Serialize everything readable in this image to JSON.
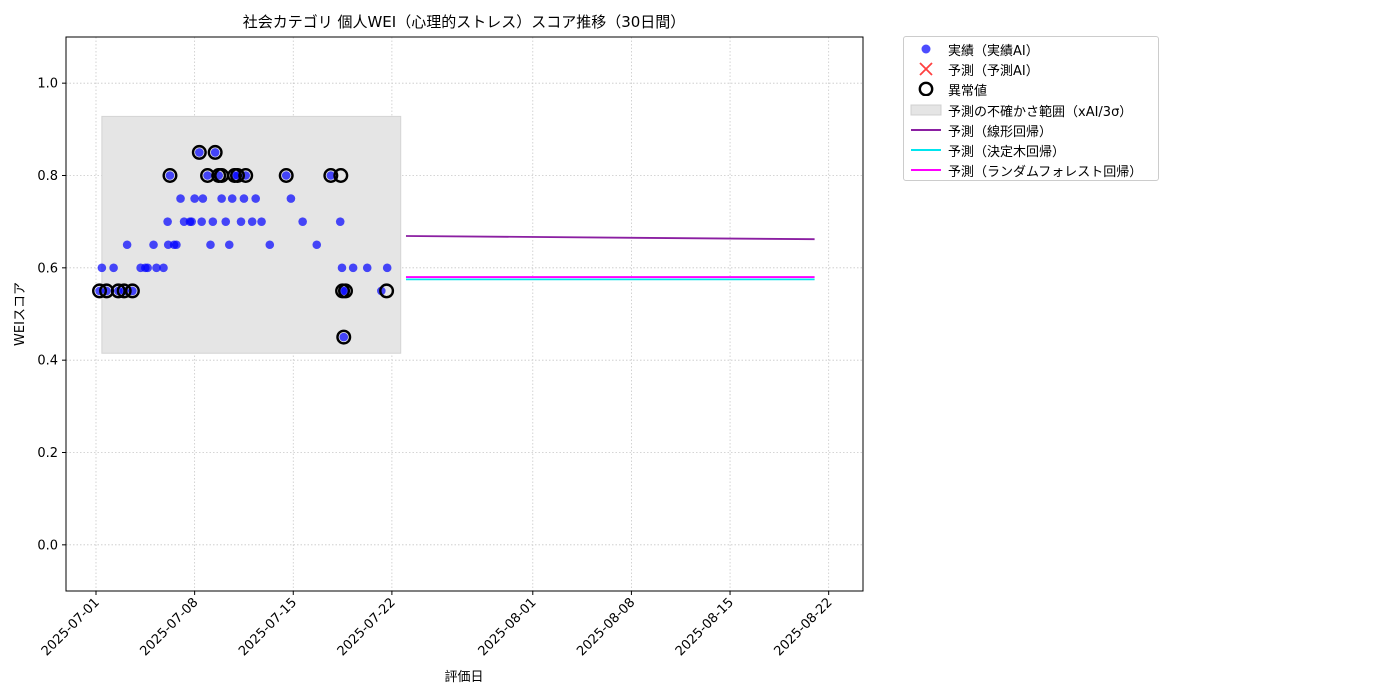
{
  "chart_data": {
    "type": "scatter",
    "title": "社会カテゴリ 個人WEI（心理的ストレス）スコア推移（30日間）",
    "xlabel": "評価日",
    "ylabel": "WEIスコア",
    "xlim": [
      "2024-06-29T00:00",
      "2025-08-24T00:00"
    ],
    "ylim": [
      -0.1,
      1.1
    ],
    "yticks": [
      0.0,
      0.2,
      0.4,
      0.6,
      0.8,
      1.0
    ],
    "ytick_labels": [
      "0.0",
      "0.2",
      "0.4",
      "0.6",
      "0.8",
      "1.0"
    ],
    "xticks": [
      "2025-07-01",
      "2025-07-08",
      "2025-07-15",
      "2025-07-22",
      "2025-08-01",
      "2025-08-08",
      "2025-08-15",
      "2025-08-22"
    ],
    "grid": true,
    "legend_position": "outside-top-right",
    "uncertainty_band": {
      "x_start": "2025-07-01T10:00",
      "x_end": "2025-07-22T15:00",
      "y_low": 0.415,
      "y_high": 0.928
    },
    "series": [
      {
        "name": "実績（実績AI）",
        "kind": "scatter",
        "color": "#0000ff",
        "points": [
          [
            "2025-07-01T06:00",
            0.55
          ],
          [
            "2025-07-01T10:00",
            0.6
          ],
          [
            "2025-07-01T18:00",
            0.55
          ],
          [
            "2025-07-02T06:00",
            0.6
          ],
          [
            "2025-07-02T14:00",
            0.55
          ],
          [
            "2025-07-03T00:00",
            0.55
          ],
          [
            "2025-07-03T05:00",
            0.65
          ],
          [
            "2025-07-03T14:00",
            0.55
          ],
          [
            "2025-07-04T04:00",
            0.6
          ],
          [
            "2025-07-04T12:00",
            0.6
          ],
          [
            "2025-07-04T16:00",
            0.6
          ],
          [
            "2025-07-05T02:00",
            0.65
          ],
          [
            "2025-07-05T07:00",
            0.6
          ],
          [
            "2025-07-05T19:00",
            0.6
          ],
          [
            "2025-07-06T02:00",
            0.7
          ],
          [
            "2025-07-06T03:00",
            0.65
          ],
          [
            "2025-07-06T06:00",
            0.8
          ],
          [
            "2025-07-06T13:00",
            0.65
          ],
          [
            "2025-07-06T17:00",
            0.65
          ],
          [
            "2025-07-07T00:00",
            0.75
          ],
          [
            "2025-07-07T06:00",
            0.7
          ],
          [
            "2025-07-07T16:00",
            0.7
          ],
          [
            "2025-07-07T19:00",
            0.7
          ],
          [
            "2025-07-08T00:00",
            0.75
          ],
          [
            "2025-07-08T08:00",
            0.85
          ],
          [
            "2025-07-08T12:00",
            0.7
          ],
          [
            "2025-07-08T14:00",
            0.75
          ],
          [
            "2025-07-08T22:00",
            0.8
          ],
          [
            "2025-07-09T03:00",
            0.65
          ],
          [
            "2025-07-09T07:00",
            0.7
          ],
          [
            "2025-07-09T11:00",
            0.85
          ],
          [
            "2025-07-09T17:00",
            0.8
          ],
          [
            "2025-07-09T22:00",
            0.75
          ],
          [
            "2025-07-10T05:00",
            0.7
          ],
          [
            "2025-07-10T11:00",
            0.65
          ],
          [
            "2025-07-10T16:00",
            0.75
          ],
          [
            "2025-07-10T20:00",
            0.8
          ],
          [
            "2025-07-11T01:00",
            0.8
          ],
          [
            "2025-07-11T07:00",
            0.7
          ],
          [
            "2025-07-11T12:00",
            0.75
          ],
          [
            "2025-07-11T15:00",
            0.8
          ],
          [
            "2025-07-12T02:00",
            0.7
          ],
          [
            "2025-07-12T08:00",
            0.75
          ],
          [
            "2025-07-12T18:00",
            0.7
          ],
          [
            "2025-07-13T08:00",
            0.65
          ],
          [
            "2025-07-14T12:00",
            0.8
          ],
          [
            "2025-07-14T20:00",
            0.75
          ],
          [
            "2025-07-15T16:00",
            0.7
          ],
          [
            "2025-07-16T16:00",
            0.65
          ],
          [
            "2025-07-17T16:00",
            0.8
          ],
          [
            "2025-07-18T08:00",
            0.7
          ],
          [
            "2025-07-18T11:00",
            0.6
          ],
          [
            "2025-07-18T12:00",
            0.55
          ],
          [
            "2025-07-18T14:00",
            0.45
          ],
          [
            "2025-07-18T17:00",
            0.55
          ],
          [
            "2025-07-19T06:00",
            0.6
          ],
          [
            "2025-07-20T06:00",
            0.6
          ],
          [
            "2025-07-21T06:00",
            0.55
          ],
          [
            "2025-07-21T16:00",
            0.6
          ]
        ]
      },
      {
        "name": "異常値",
        "kind": "outlier",
        "color": "#000000",
        "points": [
          [
            "2025-07-01T06:00",
            0.55
          ],
          [
            "2025-07-01T18:00",
            0.55
          ],
          [
            "2025-07-02T14:00",
            0.55
          ],
          [
            "2025-07-03T00:00",
            0.55
          ],
          [
            "2025-07-03T14:00",
            0.55
          ],
          [
            "2025-07-06T06:00",
            0.8
          ],
          [
            "2025-07-08T08:00",
            0.85
          ],
          [
            "2025-07-08T22:00",
            0.8
          ],
          [
            "2025-07-09T11:00",
            0.85
          ],
          [
            "2025-07-09T17:00",
            0.8
          ],
          [
            "2025-07-09T22:00",
            0.8
          ],
          [
            "2025-07-10T20:00",
            0.8
          ],
          [
            "2025-07-11T01:00",
            0.8
          ],
          [
            "2025-07-11T15:00",
            0.8
          ],
          [
            "2025-07-14T12:00",
            0.8
          ],
          [
            "2025-07-17T16:00",
            0.8
          ],
          [
            "2025-07-18T09:00",
            0.8
          ],
          [
            "2025-07-18T12:00",
            0.55
          ],
          [
            "2025-07-18T14:00",
            0.45
          ],
          [
            "2025-07-18T17:00",
            0.55
          ],
          [
            "2025-07-21T15:00",
            0.55
          ]
        ]
      },
      {
        "name": "予測（予測AI）",
        "kind": "cross",
        "color": "#ff0000",
        "points": []
      },
      {
        "name": "予測（線形回帰）",
        "kind": "line",
        "color": "#8b1fa2",
        "points": [
          [
            "2025-07-23T00:00",
            0.669
          ],
          [
            "2025-08-21T00:00",
            0.662
          ]
        ]
      },
      {
        "name": "予測（決定木回帰）",
        "kind": "line",
        "color": "#00e5ee",
        "points": [
          [
            "2025-07-23T00:00",
            0.575
          ],
          [
            "2025-08-21T00:00",
            0.575
          ]
        ]
      },
      {
        "name": "予測（ランダムフォレスト回帰）",
        "kind": "line",
        "color": "#ff00ff",
        "points": [
          [
            "2025-07-23T00:00",
            0.58
          ],
          [
            "2025-08-21T00:00",
            0.58
          ]
        ]
      }
    ]
  },
  "legend": {
    "items": [
      {
        "label": "実績（実績AI）",
        "kind": "scatter",
        "color": "#0000ff",
        "icon": "blue-dot"
      },
      {
        "label": "予測（予測AI）",
        "kind": "cross",
        "color": "#ff0000",
        "icon": "red-cross"
      },
      {
        "label": "異常値",
        "kind": "outlier",
        "color": "#000000",
        "icon": "black-ring"
      },
      {
        "label": "予測の不確かさ範囲（xAI/3σ）",
        "kind": "band",
        "color": "#e5e5e5",
        "icon": "gray-band"
      },
      {
        "label": "予測（線形回帰）",
        "kind": "line",
        "color": "#8b1fa2",
        "icon": "purple-line"
      },
      {
        "label": "予測（決定木回帰）",
        "kind": "line",
        "color": "#00e5ee",
        "icon": "cyan-line"
      },
      {
        "label": "予測（ランダムフォレスト回帰）",
        "kind": "line",
        "color": "#ff00ff",
        "icon": "magenta-line"
      }
    ]
  }
}
